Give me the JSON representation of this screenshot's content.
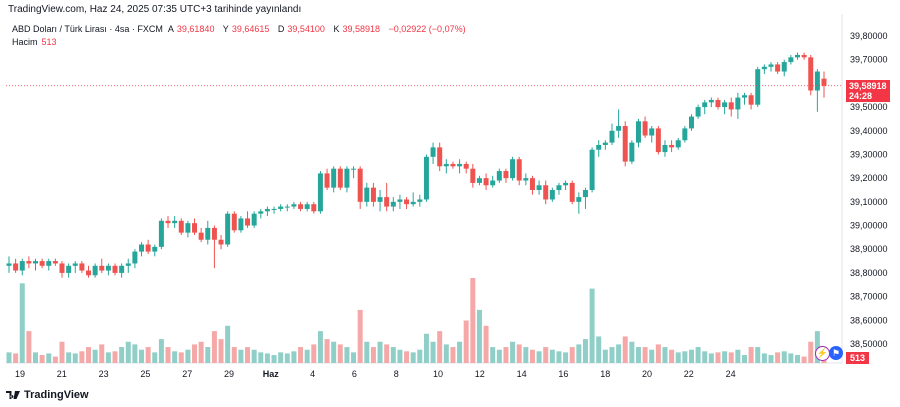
{
  "caption": "TradingView.com, Haz 24, 2025 07:35 UTC+3 tarihinde yayınlandı",
  "legend": {
    "symbol": "ABD Doları / Türk Lirası · 4sa · FXCM",
    "o_label": "A",
    "o_val": "39,61840",
    "h_label": "Y",
    "h_val": "39,64615",
    "l_label": "D",
    "l_val": "39,54100",
    "c_label": "K",
    "c_val": "39,58918",
    "change": "−0,02922 (−0,07%)"
  },
  "volume": {
    "label": "Hacim",
    "value": "513"
  },
  "last_price": {
    "price": "39,58918",
    "countdown": "24:28"
  },
  "footer": {
    "brand": "TradingView"
  },
  "colors": {
    "up": "#26a69a",
    "down": "#ef5350",
    "up_vol": "#8fcfc7",
    "down_vol": "#f4a9a8",
    "price_tag": "#f23645"
  },
  "chart_data": {
    "type": "candlestick",
    "y_ticks": [
      "39,80000",
      "39,70000",
      "39,60000",
      "39,50000",
      "39,40000",
      "39,30000",
      "39,20000",
      "39,10000",
      "39,00000",
      "38,90000",
      "38,80000",
      "38,70000",
      "38,60000",
      "38,50000"
    ],
    "ylim": [
      38.43,
      39.84
    ],
    "x_ticks": [
      "19",
      "21",
      "23",
      "25",
      "27",
      "29",
      "Haz",
      "4",
      "6",
      "8",
      "10",
      "12",
      "14",
      "16",
      "18",
      "20",
      "22",
      "24"
    ],
    "candles": [
      [
        38.83,
        38.87,
        38.8,
        38.84,
        20
      ],
      [
        38.84,
        38.86,
        38.8,
        38.81,
        18
      ],
      [
        38.81,
        38.86,
        38.79,
        38.85,
        150
      ],
      [
        38.85,
        38.87,
        38.82,
        38.84,
        60
      ],
      [
        38.84,
        38.86,
        38.81,
        38.85,
        20
      ],
      [
        38.85,
        38.86,
        38.82,
        38.83,
        15
      ],
      [
        38.83,
        38.86,
        38.81,
        38.85,
        18
      ],
      [
        38.85,
        38.86,
        38.83,
        38.84,
        12
      ],
      [
        38.84,
        38.85,
        38.78,
        38.8,
        40
      ],
      [
        38.8,
        38.84,
        38.78,
        38.83,
        20
      ],
      [
        38.83,
        38.85,
        38.8,
        38.84,
        18
      ],
      [
        38.84,
        38.85,
        38.8,
        38.81,
        22
      ],
      [
        38.81,
        38.83,
        38.78,
        38.79,
        30
      ],
      [
        38.79,
        38.84,
        38.78,
        38.83,
        25
      ],
      [
        38.83,
        38.86,
        38.8,
        38.81,
        35
      ],
      [
        38.81,
        38.84,
        38.79,
        38.83,
        20
      ],
      [
        38.83,
        38.84,
        38.79,
        38.8,
        22
      ],
      [
        38.8,
        38.84,
        38.78,
        38.83,
        30
      ],
      [
        38.83,
        38.86,
        38.8,
        38.84,
        40
      ],
      [
        38.84,
        38.9,
        38.82,
        38.89,
        35
      ],
      [
        38.89,
        38.93,
        38.87,
        38.92,
        25
      ],
      [
        38.92,
        38.94,
        38.88,
        38.89,
        30
      ],
      [
        38.89,
        38.92,
        38.87,
        38.91,
        20
      ],
      [
        38.91,
        39.03,
        38.9,
        39.02,
        45
      ],
      [
        39.02,
        39.04,
        38.99,
        39.01,
        30
      ],
      [
        39.01,
        39.04,
        38.99,
        39.02,
        22
      ],
      [
        39.02,
        39.03,
        38.96,
        38.97,
        20
      ],
      [
        38.97,
        39.02,
        38.95,
        39.01,
        25
      ],
      [
        39.01,
        39.03,
        38.96,
        38.97,
        35
      ],
      [
        38.97,
        38.99,
        38.93,
        38.94,
        40
      ],
      [
        38.94,
        39.02,
        38.92,
        38.99,
        30
      ],
      [
        38.99,
        39.0,
        38.82,
        38.94,
        60
      ],
      [
        38.94,
        38.96,
        38.9,
        38.92,
        45
      ],
      [
        38.92,
        39.06,
        38.91,
        39.05,
        70
      ],
      [
        39.05,
        39.06,
        38.97,
        38.98,
        30
      ],
      [
        38.98,
        39.04,
        38.97,
        39.03,
        25
      ],
      [
        39.03,
        39.06,
        38.99,
        39.0,
        30
      ],
      [
        39.0,
        39.06,
        38.99,
        39.05,
        25
      ],
      [
        39.05,
        39.07,
        39.03,
        39.06,
        20
      ],
      [
        39.06,
        39.08,
        39.04,
        39.07,
        18
      ],
      [
        39.07,
        39.08,
        39.05,
        39.07,
        15
      ],
      [
        39.07,
        39.09,
        39.06,
        39.08,
        20
      ],
      [
        39.08,
        39.09,
        39.06,
        39.08,
        18
      ],
      [
        39.08,
        39.1,
        39.07,
        39.09,
        22
      ],
      [
        39.09,
        39.1,
        39.06,
        39.07,
        30
      ],
      [
        39.07,
        39.1,
        39.06,
        39.09,
        25
      ],
      [
        39.09,
        39.1,
        39.05,
        39.06,
        35
      ],
      [
        39.06,
        39.23,
        39.05,
        39.22,
        60
      ],
      [
        39.22,
        39.24,
        39.15,
        39.16,
        45
      ],
      [
        39.16,
        39.25,
        39.14,
        39.24,
        40
      ],
      [
        39.24,
        39.25,
        39.15,
        39.16,
        35
      ],
      [
        39.16,
        39.25,
        39.14,
        39.24,
        30
      ],
      [
        39.24,
        39.25,
        39.2,
        39.24,
        20
      ],
      [
        39.24,
        39.25,
        39.07,
        39.1,
        100
      ],
      [
        39.1,
        39.18,
        39.08,
        39.16,
        40
      ],
      [
        39.16,
        39.18,
        39.08,
        39.1,
        30
      ],
      [
        39.1,
        39.15,
        39.06,
        39.12,
        40
      ],
      [
        39.12,
        39.18,
        39.06,
        39.08,
        35
      ],
      [
        39.08,
        39.12,
        39.06,
        39.1,
        30
      ],
      [
        39.1,
        39.13,
        39.07,
        39.11,
        25
      ],
      [
        39.11,
        39.12,
        39.07,
        39.09,
        22
      ],
      [
        39.09,
        39.14,
        39.08,
        39.1,
        20
      ],
      [
        39.1,
        39.13,
        39.08,
        39.11,
        25
      ],
      [
        39.11,
        39.3,
        39.1,
        39.29,
        55
      ],
      [
        39.29,
        39.35,
        39.26,
        39.33,
        40
      ],
      [
        39.33,
        39.35,
        39.23,
        39.25,
        60
      ],
      [
        39.25,
        39.28,
        39.22,
        39.26,
        35
      ],
      [
        39.26,
        39.27,
        39.24,
        39.25,
        30
      ],
      [
        39.25,
        39.28,
        39.22,
        39.26,
        40
      ],
      [
        39.26,
        39.27,
        39.22,
        39.24,
        80
      ],
      [
        39.24,
        39.26,
        39.16,
        39.18,
        160
      ],
      [
        39.18,
        39.21,
        39.17,
        39.2,
        100
      ],
      [
        39.2,
        39.22,
        39.15,
        39.17,
        70
      ],
      [
        39.17,
        39.21,
        39.16,
        39.19,
        30
      ],
      [
        39.19,
        39.24,
        39.18,
        39.23,
        25
      ],
      [
        39.23,
        39.24,
        39.18,
        39.2,
        30
      ],
      [
        39.2,
        39.29,
        39.19,
        39.28,
        40
      ],
      [
        39.28,
        39.29,
        39.17,
        39.19,
        35
      ],
      [
        39.19,
        39.22,
        39.17,
        39.2,
        30
      ],
      [
        39.2,
        39.21,
        39.13,
        39.15,
        25
      ],
      [
        39.15,
        39.19,
        39.13,
        39.17,
        22
      ],
      [
        39.17,
        39.19,
        39.09,
        39.11,
        30
      ],
      [
        39.11,
        39.16,
        39.1,
        39.15,
        25
      ],
      [
        39.15,
        39.18,
        39.13,
        39.17,
        22
      ],
      [
        39.17,
        39.19,
        39.15,
        39.18,
        20
      ],
      [
        39.18,
        39.19,
        39.09,
        39.1,
        30
      ],
      [
        39.1,
        39.14,
        39.05,
        39.12,
        35
      ],
      [
        39.12,
        39.16,
        39.07,
        39.15,
        45
      ],
      [
        39.15,
        39.33,
        39.14,
        39.32,
        140
      ],
      [
        39.32,
        39.36,
        39.29,
        39.34,
        50
      ],
      [
        39.34,
        39.36,
        39.32,
        39.35,
        25
      ],
      [
        39.35,
        39.43,
        39.34,
        39.4,
        30
      ],
      [
        39.4,
        39.49,
        39.37,
        39.42,
        35
      ],
      [
        39.42,
        39.44,
        39.25,
        39.27,
        50
      ],
      [
        39.27,
        39.36,
        39.26,
        39.35,
        40
      ],
      [
        39.35,
        39.45,
        39.33,
        39.44,
        30
      ],
      [
        39.44,
        39.46,
        39.37,
        39.38,
        30
      ],
      [
        39.38,
        39.42,
        39.35,
        39.41,
        25
      ],
      [
        39.41,
        39.42,
        39.3,
        39.31,
        35
      ],
      [
        39.31,
        39.36,
        39.29,
        39.34,
        30
      ],
      [
        39.34,
        39.36,
        39.31,
        39.33,
        25
      ],
      [
        39.33,
        39.37,
        39.32,
        39.36,
        20
      ],
      [
        39.36,
        39.42,
        39.35,
        39.41,
        22
      ],
      [
        39.41,
        39.47,
        39.4,
        39.46,
        25
      ],
      [
        39.46,
        39.51,
        39.45,
        39.5,
        30
      ],
      [
        39.5,
        39.53,
        39.47,
        39.52,
        22
      ],
      [
        39.52,
        39.54,
        39.5,
        39.53,
        18
      ],
      [
        39.53,
        39.54,
        39.49,
        39.5,
        20
      ],
      [
        39.5,
        39.53,
        39.47,
        39.52,
        22
      ],
      [
        39.52,
        39.54,
        39.46,
        39.49,
        20
      ],
      [
        39.49,
        39.56,
        39.45,
        39.54,
        25
      ],
      [
        39.54,
        39.56,
        39.51,
        39.55,
        15
      ],
      [
        39.55,
        39.56,
        39.49,
        39.51,
        30
      ],
      [
        39.51,
        39.67,
        39.5,
        39.66,
        30
      ],
      [
        39.66,
        39.68,
        39.64,
        39.67,
        18
      ],
      [
        39.67,
        39.69,
        39.65,
        39.68,
        15
      ],
      [
        39.68,
        39.69,
        39.64,
        39.65,
        20
      ],
      [
        39.65,
        39.7,
        39.63,
        39.69,
        22
      ],
      [
        39.69,
        39.72,
        39.68,
        39.71,
        18
      ],
      [
        39.71,
        39.73,
        39.7,
        39.72,
        15
      ],
      [
        39.72,
        39.73,
        39.7,
        39.71,
        12
      ],
      [
        39.71,
        39.72,
        39.55,
        39.57,
        40
      ],
      [
        39.57,
        39.66,
        39.48,
        39.65,
        60
      ],
      [
        39.62,
        39.65,
        39.54,
        39.59,
        20
      ]
    ]
  }
}
